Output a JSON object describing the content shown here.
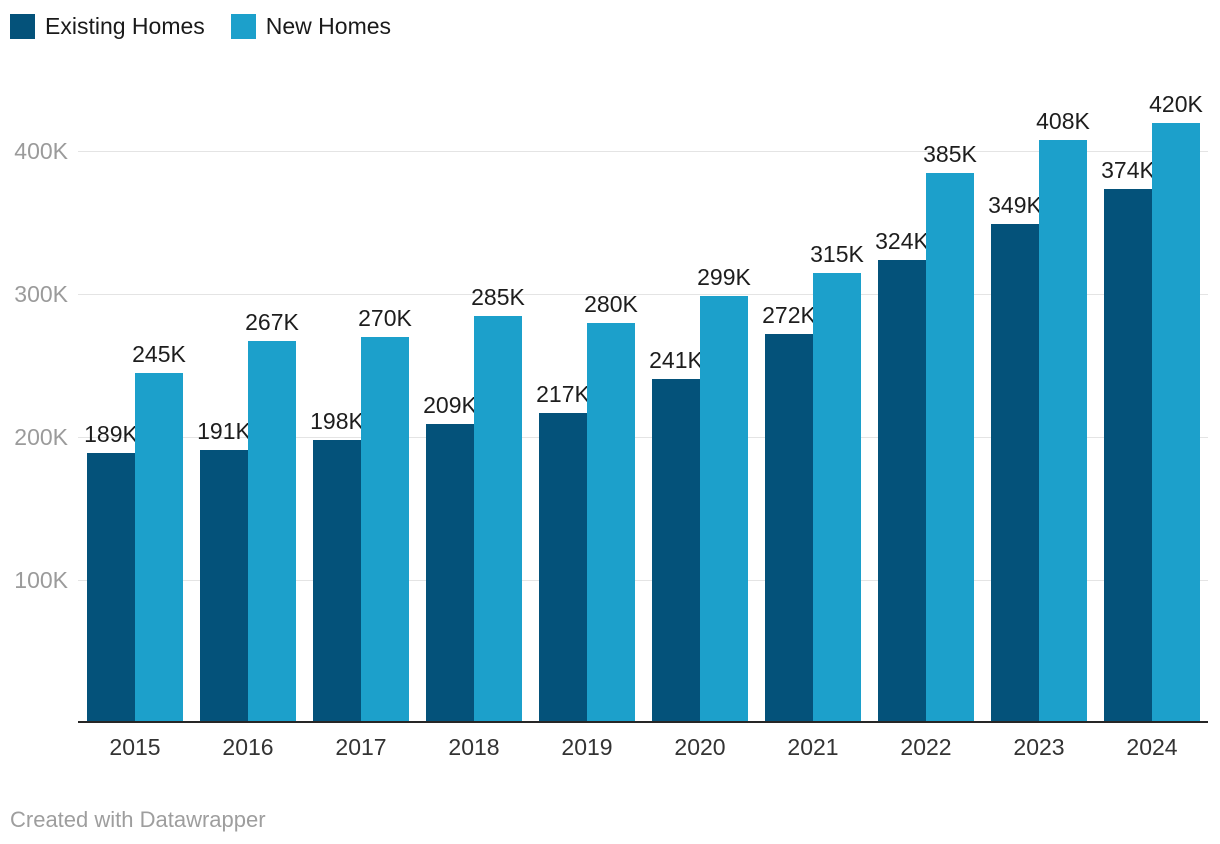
{
  "legend": {
    "items": [
      {
        "label": "Existing Homes",
        "color": "#04527A"
      },
      {
        "label": "New Homes",
        "color": "#1CA0CB"
      }
    ]
  },
  "chart_data": {
    "type": "bar",
    "title": "",
    "xlabel": "",
    "ylabel": "",
    "categories": [
      "2015",
      "2016",
      "2017",
      "2018",
      "2019",
      "2020",
      "2021",
      "2022",
      "2023",
      "2024"
    ],
    "series": [
      {
        "name": "Existing Homes",
        "color": "#04527A",
        "values": [
          189,
          191,
          198,
          209,
          217,
          241,
          272,
          324,
          349,
          374
        ],
        "labels": [
          "189K",
          "191K",
          "198K",
          "209K",
          "217K",
          "241K",
          "272K",
          "324K",
          "349K",
          "374K"
        ]
      },
      {
        "name": "New Homes",
        "color": "#1CA0CB",
        "values": [
          245,
          267,
          270,
          285,
          280,
          299,
          315,
          385,
          408,
          420
        ],
        "labels": [
          "245K",
          "267K",
          "270K",
          "285K",
          "280K",
          "299K",
          "315K",
          "385K",
          "408K",
          "420K"
        ]
      }
    ],
    "unit": "K",
    "ylim": [
      0,
      436
    ],
    "y_ticks": [
      {
        "value": 100,
        "label": "100K"
      },
      {
        "value": 200,
        "label": "200K"
      },
      {
        "value": 300,
        "label": "300K"
      },
      {
        "value": 400,
        "label": "400K"
      }
    ],
    "grid": "horizontal",
    "legend_position": "top-left"
  },
  "footer": {
    "credit": "Created with Datawrapper"
  },
  "colors": {
    "background": "#ffffff",
    "value_label": "#1d1d1d",
    "x_tick": "#333333",
    "y_tick": "#9b9b9b",
    "gridline": "#e4e4e4",
    "baseline": "#262626",
    "footer": "#9e9e9e"
  }
}
